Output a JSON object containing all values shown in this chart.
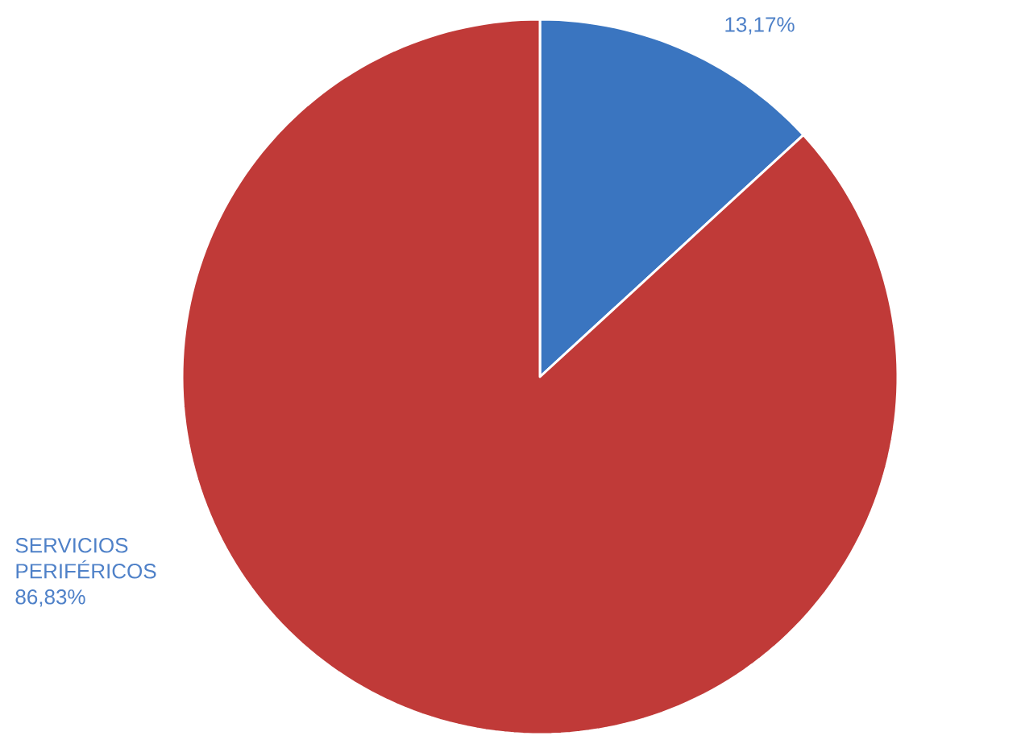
{
  "chart_data": {
    "type": "pie",
    "categories": [
      null,
      "SERVICIOS PERIFÉRICOS"
    ],
    "values": [
      13.17,
      86.83
    ],
    "colors": [
      "#3a75c0",
      "#c03a38"
    ],
    "value_labels": [
      "13,17%",
      "86,83%"
    ]
  }
}
